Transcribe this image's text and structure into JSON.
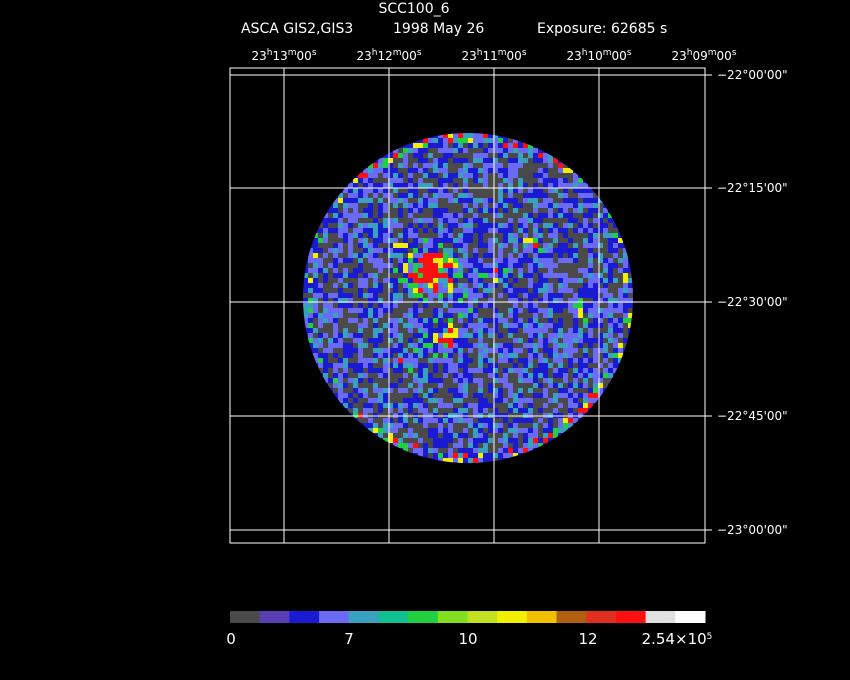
{
  "header": {
    "object": "SCC100_6",
    "instrument": "ASCA GIS2,GIS3",
    "date": "1998 May 26",
    "exposure": "Exposure: 62685 s"
  },
  "ra_ticks": [
    {
      "h": "23",
      "m": "13",
      "s": "00"
    },
    {
      "h": "23",
      "m": "12",
      "s": "00"
    },
    {
      "h": "23",
      "m": "11",
      "s": "00"
    },
    {
      "h": "23",
      "m": "10",
      "s": "00"
    },
    {
      "h": "23",
      "m": "09",
      "s": "00"
    }
  ],
  "dec_ticks": [
    "−22°00'00\"",
    "−22°15'00\"",
    "−22°30'00\"",
    "−22°45'00\"",
    "−23°00'00\""
  ],
  "colorbar": {
    "colors": [
      "#4a4a4a",
      "#5a3fb4",
      "#1a1ad2",
      "#6a6af4",
      "#3aa0c0",
      "#10c090",
      "#20d040",
      "#80e020",
      "#c0e020",
      "#f0f000",
      "#f0c000",
      "#b06010",
      "#e03020",
      "#ff1010",
      "#e0e0e0",
      "#ffffff"
    ],
    "labels": [
      "0",
      "7",
      "10",
      "12"
    ],
    "max_mantissa": "2.54×10",
    "max_exponent": "5"
  },
  "image_palette": {
    "background": "#4a4a4a",
    "low": "#1a1ad2",
    "midlow": "#6a6af4",
    "mid": "#20d040",
    "high": "#f0f000",
    "peak": "#ff1010"
  }
}
